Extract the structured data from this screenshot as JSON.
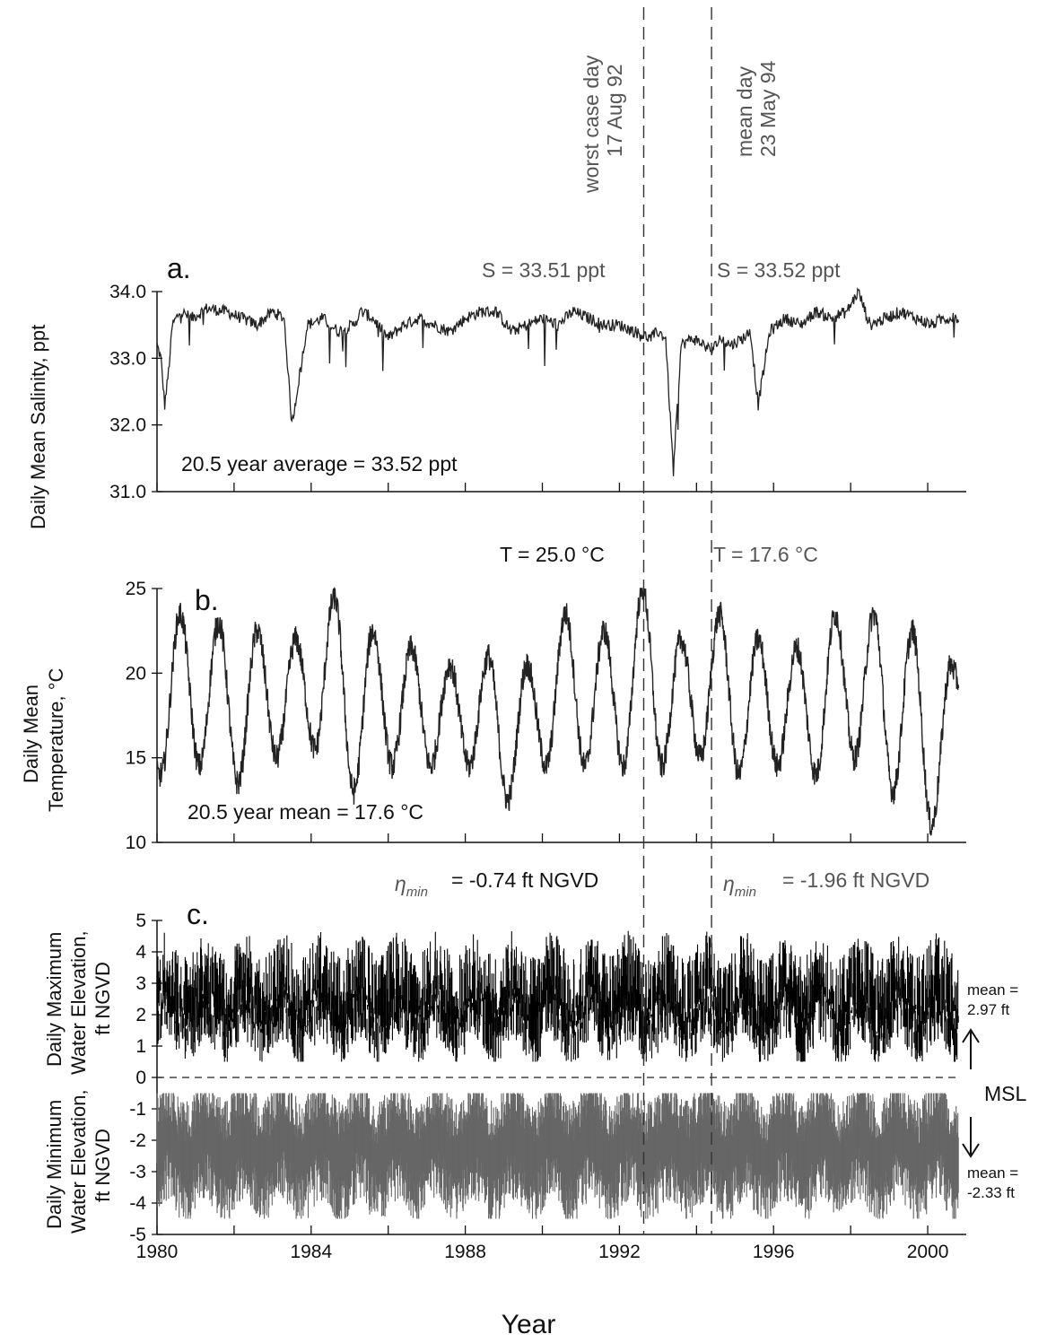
{
  "chart_data": [
    {
      "type": "line",
      "panel_label": "a.",
      "ylabel": "Daily Mean Salinity, ppt",
      "xlim": [
        1980,
        2001
      ],
      "ylim": [
        31.0,
        34.0
      ],
      "yticks": [
        "34.0",
        "33.0",
        "32.0",
        "31.0"
      ],
      "ytick_values": [
        34.0,
        33.0,
        32.0,
        31.0
      ],
      "annotation_left": "S = 33.51 ppt",
      "annotation_right": "S = 33.52 ppt",
      "average_label": "20.5 year average = 33.52 ppt",
      "series": [
        {
          "x": [
            1980.0,
            1980.1,
            1980.2,
            1980.3,
            1980.4,
            1980.6,
            1980.9,
            1981.3,
            1981.8,
            1982.2,
            1982.6,
            1983.0,
            1983.3,
            1983.5,
            1983.9,
            1984.3,
            1984.7,
            1985.1,
            1985.3,
            1985.6,
            1986.0,
            1986.4,
            1986.8,
            1987.2,
            1987.6,
            1988.0,
            1988.4,
            1988.8,
            1989.2,
            1989.6,
            1990.0,
            1990.4,
            1990.8,
            1991.2,
            1991.6,
            1992.0,
            1992.4,
            1992.8,
            1993.0,
            1993.2,
            1993.4,
            1993.6,
            1993.9,
            1994.2,
            1994.4,
            1994.6,
            1994.9,
            1995.2,
            1995.4,
            1995.6,
            1995.9,
            1996.3,
            1996.7,
            1997.1,
            1997.5,
            1997.9,
            1998.2,
            1998.5,
            1998.9,
            1999.3,
            1999.7,
            2000.1,
            2000.4,
            2000.8
          ],
          "y": [
            33.2,
            33.0,
            32.3,
            32.8,
            33.5,
            33.7,
            33.6,
            33.75,
            33.7,
            33.6,
            33.5,
            33.7,
            33.6,
            32.0,
            33.5,
            33.6,
            33.4,
            33.5,
            33.7,
            33.6,
            33.3,
            33.5,
            33.6,
            33.5,
            33.4,
            33.6,
            33.7,
            33.7,
            33.4,
            33.5,
            33.6,
            33.5,
            33.7,
            33.6,
            33.5,
            33.5,
            33.4,
            33.3,
            33.4,
            33.3,
            31.3,
            33.2,
            33.3,
            33.2,
            33.1,
            33.3,
            33.2,
            33.3,
            33.4,
            32.3,
            33.4,
            33.6,
            33.5,
            33.7,
            33.6,
            33.7,
            34.0,
            33.5,
            33.6,
            33.7,
            33.6,
            33.5,
            33.6,
            33.6
          ]
        }
      ]
    },
    {
      "type": "line",
      "panel_label": "b.",
      "ylabel_line1": "Daily Mean",
      "ylabel_line2": "Temperature, °C",
      "xlim": [
        1980,
        2001
      ],
      "ylim": [
        10,
        25
      ],
      "yticks": [
        "25",
        "20",
        "15",
        "10"
      ],
      "ytick_values": [
        25,
        20,
        15,
        10
      ],
      "annotation_left": "T = 25.0 °C",
      "annotation_right": "T = 17.6 °C",
      "average_label": "20.5 year mean = 17.6 °C",
      "seasonal_peaks": [
        {
          "x": 1980.6,
          "y": 23.5
        },
        {
          "x": 1981.6,
          "y": 23.0
        },
        {
          "x": 1982.6,
          "y": 22.5
        },
        {
          "x": 1983.6,
          "y": 22.0
        },
        {
          "x": 1984.6,
          "y": 24.5
        },
        {
          "x": 1985.6,
          "y": 22.5
        },
        {
          "x": 1986.6,
          "y": 21.5
        },
        {
          "x": 1987.6,
          "y": 20.5
        },
        {
          "x": 1988.6,
          "y": 21.0
        },
        {
          "x": 1989.6,
          "y": 20.5
        },
        {
          "x": 1990.6,
          "y": 23.5
        },
        {
          "x": 1991.6,
          "y": 22.5
        },
        {
          "x": 1992.6,
          "y": 25.0
        },
        {
          "x": 1993.6,
          "y": 22.0
        },
        {
          "x": 1994.6,
          "y": 23.5
        },
        {
          "x": 1995.6,
          "y": 22.0
        },
        {
          "x": 1996.6,
          "y": 21.5
        },
        {
          "x": 1997.6,
          "y": 23.5
        },
        {
          "x": 1998.6,
          "y": 23.5
        },
        {
          "x": 1999.6,
          "y": 22.5
        },
        {
          "x": 2000.6,
          "y": 20.5
        }
      ],
      "seasonal_troughs": [
        {
          "x": 1980.1,
          "y": 14.0
        },
        {
          "x": 1981.1,
          "y": 14.5
        },
        {
          "x": 1982.1,
          "y": 13.5
        },
        {
          "x": 1983.1,
          "y": 15.0
        },
        {
          "x": 1984.1,
          "y": 15.5
        },
        {
          "x": 1985.1,
          "y": 13.0
        },
        {
          "x": 1986.1,
          "y": 14.5
        },
        {
          "x": 1987.1,
          "y": 14.5
        },
        {
          "x": 1988.1,
          "y": 14.5
        },
        {
          "x": 1989.1,
          "y": 12.5
        },
        {
          "x": 1990.1,
          "y": 14.5
        },
        {
          "x": 1991.1,
          "y": 14.5
        },
        {
          "x": 1992.1,
          "y": 14.5
        },
        {
          "x": 1993.1,
          "y": 14.5
        },
        {
          "x": 1994.1,
          "y": 15.0
        },
        {
          "x": 1995.1,
          "y": 14.0
        },
        {
          "x": 1996.1,
          "y": 14.5
        },
        {
          "x": 1997.1,
          "y": 14.0
        },
        {
          "x": 1998.1,
          "y": 15.0
        },
        {
          "x": 1999.1,
          "y": 13.0
        },
        {
          "x": 2000.1,
          "y": 11.0
        },
        {
          "x": 2000.8,
          "y": 19.5
        }
      ]
    },
    {
      "type": "area",
      "panel_label": "c.",
      "ylabel_upper": [
        "Daily Maximum",
        "Water Elevation,",
        "ft NGVD"
      ],
      "ylabel_lower": [
        "Daily Minimum",
        "Water Elevation,",
        "ft NGVD"
      ],
      "xlim": [
        1980,
        2001
      ],
      "ylim": [
        -5,
        5
      ],
      "yticks": [
        "5",
        "4",
        "3",
        "2",
        "1",
        "0",
        "-1",
        "-2",
        "-3",
        "-4",
        "-5"
      ],
      "ytick_values": [
        5,
        4,
        3,
        2,
        1,
        0,
        -1,
        -2,
        -3,
        -4,
        -5
      ],
      "xticks": [
        "1980",
        "1984",
        "1988",
        "1992",
        "1996",
        "2000"
      ],
      "xtick_values": [
        1980,
        1984,
        1988,
        1992,
        1996,
        2000
      ],
      "xlabel": "Year",
      "annotation_left": "= -0.74 ft NGVD",
      "annotation_right": "= -1.96 ft NGVD",
      "eta_symbol": "η",
      "eta_sub_left": "min",
      "eta_sub_right": "min",
      "series": [
        {
          "name_line1": "mean =",
          "name_line2": "2.97 ft",
          "mean": 2.97,
          "typical_range": [
            0.5,
            5.0
          ],
          "color": "#000000"
        },
        {
          "name_line1": "mean =",
          "name_line2": "-2.33 ft",
          "mean": -2.33,
          "typical_range": [
            -4.5,
            -0.5
          ],
          "color": "#666666"
        }
      ],
      "msl_label": "MSL",
      "msl_value": 0
    }
  ],
  "events": [
    {
      "line1": "worst case day",
      "line2": "17 Aug 92",
      "x": 1992.63
    },
    {
      "line1": "mean day",
      "line2": "23 May 94",
      "x": 1994.39
    }
  ]
}
